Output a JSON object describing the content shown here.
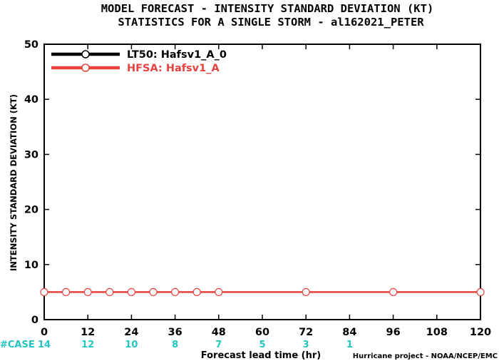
{
  "chart_data": {
    "type": "line",
    "title": "MODEL FORECAST - INTENSITY STANDARD DEVIATION (KT)",
    "subtitle": "STATISTICS FOR A SINGLE STORM - al162021_PETER",
    "xlabel": "Forecast lead time (hr)",
    "ylabel": "INTENSITY STANDARD DEVIATION (KT)",
    "xlim": [
      0,
      120
    ],
    "ylim": [
      0,
      50
    ],
    "x_ticks": [
      0,
      12,
      24,
      36,
      48,
      60,
      72,
      84,
      96,
      108,
      120
    ],
    "y_ticks": [
      0,
      10,
      20,
      30,
      40,
      50
    ],
    "grid": false,
    "legend_position": "top-left",
    "series": [
      {
        "name": "LT50: Hafsv1_A_0",
        "color": "#000000",
        "x": [],
        "y": []
      },
      {
        "name": "HFSA: Hafsv1_A",
        "color": "#e8423f",
        "x": [
          0,
          6,
          12,
          18,
          24,
          30,
          36,
          42,
          48,
          72,
          96,
          120
        ],
        "y": [
          5,
          5,
          5,
          5,
          5,
          5,
          5,
          5,
          5,
          5,
          5,
          5
        ]
      }
    ],
    "case_label": "#CASE",
    "case_color": "#22c4c4",
    "cases": [
      {
        "x": 0,
        "n": "14"
      },
      {
        "x": 12,
        "n": "12"
      },
      {
        "x": 24,
        "n": "10"
      },
      {
        "x": 36,
        "n": "8"
      },
      {
        "x": 48,
        "n": "7"
      },
      {
        "x": 60,
        "n": "5"
      },
      {
        "x": 72,
        "n": "3"
      },
      {
        "x": 84,
        "n": "1"
      }
    ],
    "credit": "Hurricane project - NOAA/NCEP/EMC"
  }
}
